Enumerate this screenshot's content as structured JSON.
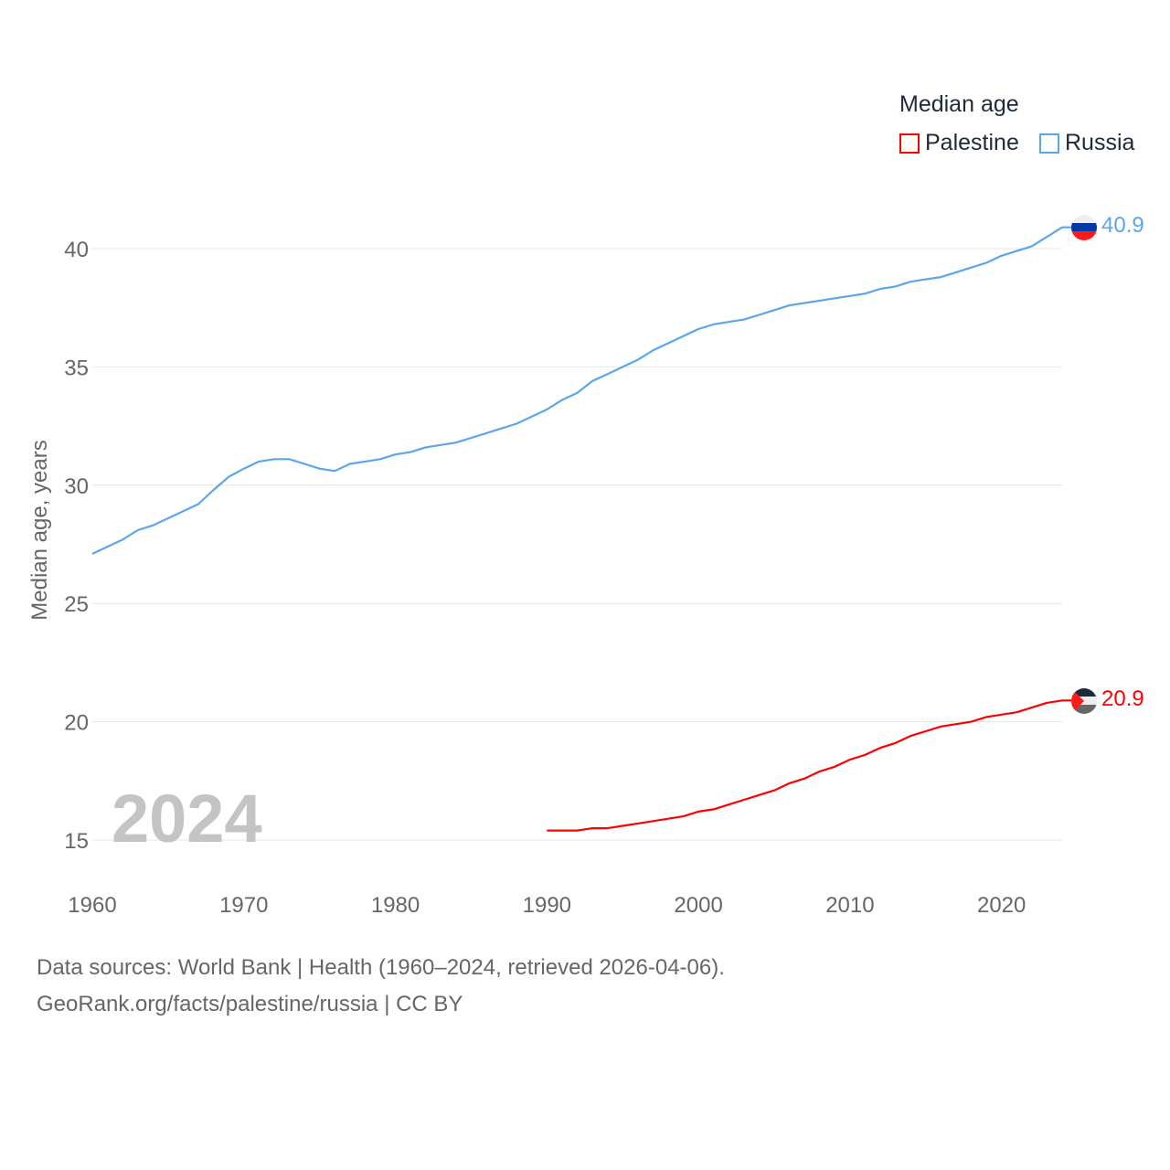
{
  "legend": {
    "title": "Median age",
    "items": [
      {
        "label": "Palestine",
        "color": "#ff0000"
      },
      {
        "label": "Russia",
        "color": "#5aa6ea"
      }
    ]
  },
  "footer": {
    "sources": "Data sources: World Bank | Health (1960–2024, retrieved 2026-04-06).",
    "link": "GeoRank.org/facts/palestine/russia | CC BY"
  },
  "chart_data": {
    "type": "line",
    "title": "Median age",
    "xlabel": "",
    "ylabel": "Median age, years",
    "xlim": [
      1960,
      2024
    ],
    "ylim": [
      15,
      40
    ],
    "xticks": [
      "1960",
      "1970",
      "1980",
      "1990",
      "2000",
      "2010",
      "2020"
    ],
    "yticks": [
      "15",
      "20",
      "25",
      "30",
      "35",
      "40"
    ],
    "grid": true,
    "legend_position": "top-right",
    "year_annotation": "2024",
    "series": [
      {
        "name": "Russia",
        "color": "#5aa6ea",
        "end_label": "40.9",
        "x": [
          1960,
          1961,
          1962,
          1963,
          1964,
          1965,
          1966,
          1967,
          1968,
          1969,
          1970,
          1971,
          1972,
          1973,
          1974,
          1975,
          1976,
          1977,
          1978,
          1979,
          1980,
          1981,
          1982,
          1983,
          1984,
          1985,
          1986,
          1987,
          1988,
          1989,
          1990,
          1991,
          1992,
          1993,
          1994,
          1995,
          1996,
          1997,
          1998,
          1999,
          2000,
          2001,
          2002,
          2003,
          2004,
          2005,
          2006,
          2007,
          2008,
          2009,
          2010,
          2011,
          2012,
          2013,
          2014,
          2015,
          2016,
          2017,
          2018,
          2019,
          2020,
          2021,
          2022,
          2023,
          2024
        ],
        "y": [
          27.1,
          27.4,
          27.7,
          28.1,
          28.3,
          28.6,
          28.9,
          29.2,
          29.8,
          30.35,
          30.7,
          31.0,
          31.1,
          31.1,
          30.9,
          30.7,
          30.6,
          30.9,
          31.0,
          31.1,
          31.3,
          31.4,
          31.6,
          31.7,
          31.8,
          32.0,
          32.2,
          32.4,
          32.6,
          32.9,
          33.2,
          33.6,
          33.9,
          34.4,
          34.7,
          35.0,
          35.3,
          35.7,
          36.0,
          36.3,
          36.6,
          36.8,
          36.9,
          37.0,
          37.2,
          37.4,
          37.6,
          37.7,
          37.8,
          37.9,
          38.0,
          38.1,
          38.3,
          38.4,
          38.6,
          38.7,
          38.8,
          39.0,
          39.2,
          39.4,
          39.7,
          39.9,
          40.1,
          40.5,
          40.9
        ]
      },
      {
        "name": "Palestine",
        "color": "#ff0000",
        "end_label": "20.9",
        "x": [
          1990,
          1991,
          1992,
          1993,
          1994,
          1995,
          1996,
          1997,
          1998,
          1999,
          2000,
          2001,
          2002,
          2003,
          2004,
          2005,
          2006,
          2007,
          2008,
          2009,
          2010,
          2011,
          2012,
          2013,
          2014,
          2015,
          2016,
          2017,
          2018,
          2019,
          2020,
          2021,
          2022,
          2023,
          2024
        ],
        "y": [
          15.4,
          15.4,
          15.4,
          15.5,
          15.5,
          15.6,
          15.7,
          15.8,
          15.9,
          16.0,
          16.2,
          16.3,
          16.5,
          16.7,
          16.9,
          17.1,
          17.4,
          17.6,
          17.9,
          18.1,
          18.4,
          18.6,
          18.9,
          19.1,
          19.4,
          19.6,
          19.8,
          19.9,
          20.0,
          20.2,
          20.3,
          20.4,
          20.6,
          20.8,
          20.9
        ]
      }
    ]
  }
}
